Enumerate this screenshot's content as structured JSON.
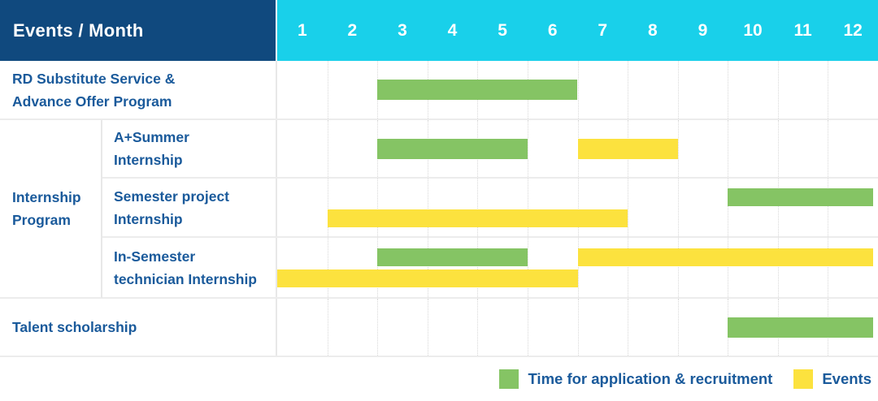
{
  "header": {
    "label": "Events / Month",
    "months": [
      "1",
      "2",
      "3",
      "4",
      "5",
      "6",
      "7",
      "8",
      "9",
      "10",
      "11",
      "12"
    ]
  },
  "colors": {
    "navy": "#10497E",
    "cyan": "#19D0EA",
    "green": "#85C464",
    "yellow": "#FCE23E",
    "label_blue": "#1A5A9B",
    "grid_line": "#ECECEC"
  },
  "legend": {
    "items": [
      {
        "color_key": "green",
        "label": "Time for application & recruitment"
      },
      {
        "color_key": "yellow",
        "label": "Events"
      }
    ]
  },
  "chart_data": {
    "type": "bar",
    "subtype": "gantt",
    "title": "Events / Month",
    "xlabel": "Month",
    "x_ticks": [
      1,
      2,
      3,
      4,
      5,
      6,
      7,
      8,
      9,
      10,
      11,
      12
    ],
    "x_range": [
      1,
      12
    ],
    "legend": {
      "green": "Time for application & recruitment",
      "yellow": "Events"
    },
    "rows": [
      {
        "group": "",
        "label": "RD Substitute Service &\nAdvance Offer Program",
        "lanes": [
          [
            {
              "type": "green",
              "start_month": 3,
              "end_month": 6
            }
          ]
        ]
      },
      {
        "group": "Internship\nProgram",
        "label": "A+Summer\nInternship",
        "lanes": [
          [
            {
              "type": "green",
              "start_month": 3,
              "end_month": 5
            },
            {
              "type": "yellow",
              "start_month": 7,
              "end_month": 8
            }
          ]
        ]
      },
      {
        "group": "Internship\nProgram",
        "label": "Semester project\nInternship",
        "lanes": [
          [
            {
              "type": "green",
              "start_month": 10,
              "end_month": 12
            }
          ],
          [
            {
              "type": "yellow",
              "start_month": 2,
              "end_month": 7
            }
          ]
        ]
      },
      {
        "group": "Internship\nProgram",
        "label": "In-Semester\ntechnician Internship",
        "lanes": [
          [
            {
              "type": "green",
              "start_month": 3,
              "end_month": 5
            },
            {
              "type": "yellow",
              "start_month": 7,
              "end_month": 12
            }
          ],
          [
            {
              "type": "yellow",
              "start_month": 1,
              "end_month": 6
            }
          ]
        ]
      },
      {
        "group": "",
        "label": "Talent scholarship",
        "lanes": [
          [
            {
              "type": "green",
              "start_month": 10,
              "end_month": 12
            }
          ]
        ]
      }
    ]
  }
}
